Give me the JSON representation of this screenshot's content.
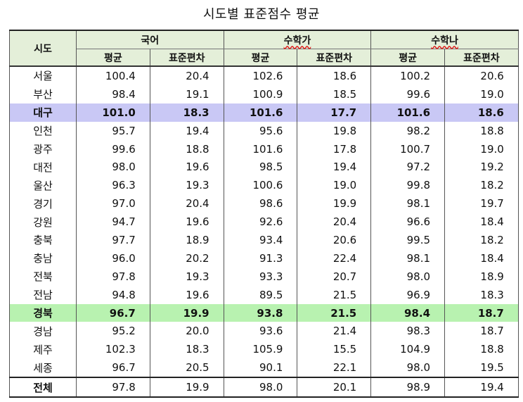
{
  "title": "시도별 표준점수 평균",
  "header": {
    "region": "시도",
    "groups": [
      "국어",
      "수학가",
      "수학나"
    ],
    "mean": "평균",
    "sd": "표준편차"
  },
  "rows": [
    {
      "name": "서울",
      "v": [
        "100.4",
        "20.4",
        "102.6",
        "18.6",
        "100.2",
        "20.6"
      ]
    },
    {
      "name": "부산",
      "v": [
        "98.4",
        "19.1",
        "100.9",
        "18.5",
        "99.6",
        "19.0"
      ]
    },
    {
      "name": "대구",
      "v": [
        "101.0",
        "18.3",
        "101.6",
        "17.7",
        "101.6",
        "18.6"
      ]
    },
    {
      "name": "인천",
      "v": [
        "95.7",
        "19.4",
        "95.6",
        "19.8",
        "98.2",
        "18.8"
      ]
    },
    {
      "name": "광주",
      "v": [
        "99.6",
        "18.8",
        "101.6",
        "17.8",
        "100.7",
        "19.0"
      ]
    },
    {
      "name": "대전",
      "v": [
        "98.0",
        "19.6",
        "98.5",
        "19.4",
        "97.2",
        "19.2"
      ]
    },
    {
      "name": "울산",
      "v": [
        "96.3",
        "19.3",
        "100.6",
        "19.0",
        "99.8",
        "18.2"
      ]
    },
    {
      "name": "경기",
      "v": [
        "97.0",
        "20.4",
        "98.6",
        "19.9",
        "98.1",
        "19.7"
      ]
    },
    {
      "name": "강원",
      "v": [
        "94.7",
        "19.6",
        "92.6",
        "20.4",
        "96.6",
        "18.4"
      ]
    },
    {
      "name": "충북",
      "v": [
        "97.7",
        "18.9",
        "93.4",
        "20.6",
        "99.5",
        "18.2"
      ]
    },
    {
      "name": "충남",
      "v": [
        "96.0",
        "20.2",
        "91.3",
        "22.4",
        "98.1",
        "18.4"
      ]
    },
    {
      "name": "전북",
      "v": [
        "97.8",
        "19.3",
        "93.3",
        "20.7",
        "98.0",
        "18.9"
      ]
    },
    {
      "name": "전남",
      "v": [
        "94.8",
        "19.6",
        "89.5",
        "21.5",
        "96.9",
        "18.3"
      ]
    },
    {
      "name": "경북",
      "v": [
        "96.7",
        "19.9",
        "93.8",
        "21.5",
        "98.4",
        "18.7"
      ]
    },
    {
      "name": "경남",
      "v": [
        "95.2",
        "20.0",
        "93.6",
        "21.4",
        "98.3",
        "18.7"
      ]
    },
    {
      "name": "제주",
      "v": [
        "102.3",
        "18.3",
        "105.9",
        "15.5",
        "104.9",
        "18.8"
      ]
    },
    {
      "name": "세종",
      "v": [
        "96.7",
        "20.5",
        "90.1",
        "22.1",
        "98.0",
        "19.5"
      ]
    }
  ],
  "total": {
    "name": "전체",
    "v": [
      "97.8",
      "19.9",
      "98.0",
      "20.1",
      "98.9",
      "19.4"
    ]
  },
  "highlight_colors": {
    "대구": "#c9c8f5",
    "경북": "#b8f2b0",
    "header": "#e4efd9"
  }
}
